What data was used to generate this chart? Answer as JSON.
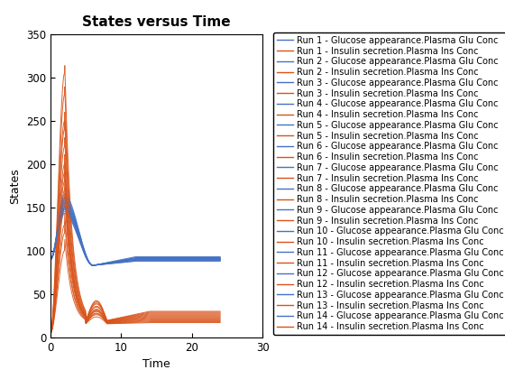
{
  "title": "States versus Time",
  "xlabel": "Time",
  "ylabel": "States",
  "xlim": [
    0,
    30
  ],
  "ylim": [
    0,
    350
  ],
  "xticks": [
    0,
    10,
    20,
    30
  ],
  "yticks": [
    0,
    50,
    100,
    150,
    200,
    250,
    300,
    350
  ],
  "n_runs": 14,
  "blue_color": "#4472C4",
  "orange_color": "#D95319",
  "t_end": 24.0,
  "title_fontsize": 11,
  "axis_label_fontsize": 9,
  "legend_fontsize": 7.0,
  "legend_entries": [
    "Run 1 - Glucose appearance.Plasma Glu Conc",
    "Run 1 - Insulin secretion.Plasma Ins Conc",
    "Run 2 - Glucose appearance.Plasma Glu Conc",
    "Run 2 - Insulin secretion.Plasma Ins Conc",
    "Run 3 - Glucose appearance.Plasma Glu Conc",
    "Run 3 - Insulin secretion.Plasma Ins Conc",
    "Run 4 - Glucose appearance.Plasma Glu Conc",
    "Run 4 - Insulin secretion.Plasma Ins Conc",
    "Run 5 - Glucose appearance.Plasma Glu Conc",
    "Run 5 - Insulin secretion.Plasma Ins Conc",
    "Run 6 - Glucose appearance.Plasma Glu Conc",
    "Run 6 - Insulin secretion.Plasma Ins Conc",
    "Run 7 - Glucose appearance.Plasma Glu Conc",
    "Run 7 - Insulin secretion.Plasma Ins Conc",
    "Run 8 - Glucose appearance.Plasma Glu Conc",
    "Run 8 - Insulin secretion.Plasma Ins Conc",
    "Run 9 - Glucose appearance.Plasma Glu Conc",
    "Run 9 - Insulin secretion.Plasma Ins Conc",
    "Run 10 - Glucose appearance.Plasma Glu Conc",
    "Run 10 - Insulin secretion.Plasma Ins Conc",
    "Run 11 - Glucose appearance.Plasma Glu Conc",
    "Run 11 - Insulin secretion.Plasma Ins Conc",
    "Run 12 - Glucose appearance.Plasma Glu Conc",
    "Run 12 - Insulin secretion.Plasma Ins Conc",
    "Run 13 - Glucose appearance.Plasma Glu Conc",
    "Run 13 - Insulin secretion.Plasma Ins Conc",
    "Run 14 - Glucose appearance.Plasma Glu Conc",
    "Run 14 - Insulin secretion.Plasma Ins Conc"
  ],
  "glucose_peaks": [
    148,
    153,
    145,
    160,
    155,
    150,
    162,
    143,
    158,
    147,
    152,
    165,
    156,
    149
  ],
  "glucose_finals": [
    88,
    90,
    92,
    89,
    91,
    90,
    93,
    88,
    91,
    90,
    89,
    92,
    91,
    90
  ],
  "insulin_peaks": [
    120,
    305,
    150,
    200,
    180,
    250,
    100,
    280,
    130,
    220,
    170,
    160,
    240,
    190
  ],
  "insulin_finals": [
    20,
    25,
    18,
    28,
    22,
    30,
    17,
    27,
    21,
    26,
    19,
    24,
    29,
    23
  ]
}
